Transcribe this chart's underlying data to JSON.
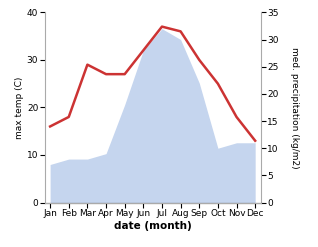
{
  "months": [
    "Jan",
    "Feb",
    "Mar",
    "Apr",
    "May",
    "Jun",
    "Jul",
    "Aug",
    "Sep",
    "Oct",
    "Nov",
    "Dec"
  ],
  "temperature": [
    16,
    18,
    29,
    27,
    27,
    32,
    37,
    36,
    30,
    25,
    18,
    13
  ],
  "precipitation": [
    7,
    8,
    8,
    9,
    18,
    28,
    32,
    30,
    22,
    10,
    11,
    11
  ],
  "temp_color": "#cc3333",
  "precip_fill_color": "#c5d5ee",
  "precip_edge_color": "#aabbdd",
  "ylabel_left": "max temp (C)",
  "ylabel_right": "med. precipitation (kg/m2)",
  "xlabel": "date (month)",
  "ylim_left": [
    0,
    40
  ],
  "ylim_right": [
    0,
    35
  ],
  "yticks_left": [
    0,
    10,
    20,
    30,
    40
  ],
  "yticks_right": [
    0,
    5,
    10,
    15,
    20,
    25,
    30,
    35
  ],
  "bg_color": "#ffffff",
  "line_width": 1.8
}
